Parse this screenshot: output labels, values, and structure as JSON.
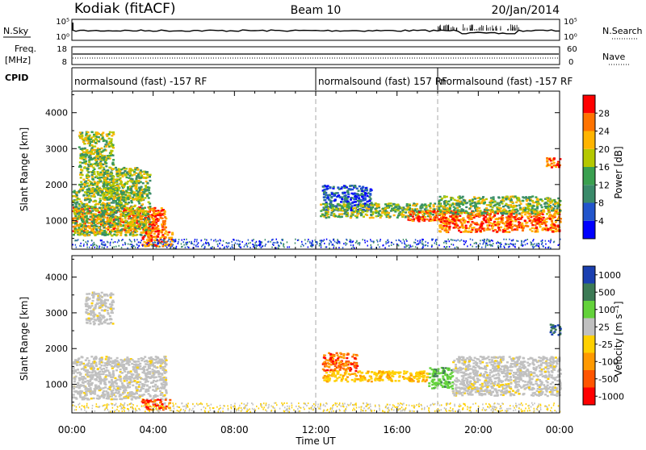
{
  "header": {
    "station": "Kodiak (fitACF)",
    "beam": "Beam 10",
    "date": "20/Jan/2014"
  },
  "noise_panel": {
    "left_label": "N.Sky",
    "right_label": "N.Search",
    "left_ticks": [
      "10^5",
      "10^0"
    ],
    "right_ticks": [
      "10^5",
      "10^0"
    ]
  },
  "freq_panel": {
    "left_label_1": "Freq.",
    "left_label_2": "[MHz]",
    "right_label": "Nave",
    "left_ticks": [
      "18",
      "8"
    ],
    "right_ticks": [
      "60",
      "0"
    ]
  },
  "cpid": {
    "label": "CPID",
    "segments": [
      {
        "start": 0.0,
        "end": 12.0,
        "text": "normalsound (fast) -157 RF"
      },
      {
        "start": 12.0,
        "end": 18.0,
        "text": "normalsound (fast) 157 RF"
      },
      {
        "start": 18.0,
        "end": 24.0,
        "text": "normalsound (fast) -157 RF"
      }
    ]
  },
  "axes": {
    "ylabel": "Slant Range [km]",
    "xlabel": "Time UT",
    "xticks": [
      "00:00",
      "04:00",
      "08:00",
      "12:00",
      "16:00",
      "20:00",
      "00:00"
    ],
    "yticks": [
      "1000",
      "2000",
      "3000",
      "4000"
    ]
  },
  "power_colorbar": {
    "label": "Power [dB]",
    "ticks": [
      "4",
      "8",
      "12",
      "16",
      "20",
      "24",
      "28"
    ],
    "colors": [
      "#0000ff",
      "#2255cc",
      "#3a8a6a",
      "#3aa050",
      "#b5c800",
      "#ffb400",
      "#ff7300",
      "#ff0000"
    ]
  },
  "velocity_colorbar": {
    "label": "Velocity [m s^-1]",
    "ticks": [
      "1000",
      "500",
      "100",
      "25",
      "-25",
      "-100",
      "-500",
      "-1000"
    ],
    "colors": [
      "#1a3fb0",
      "#3c7a55",
      "#63d23a",
      "#c0c0c0",
      "#ffd000",
      "#ff9900",
      "#ff5500",
      "#ff0000"
    ]
  },
  "chart_data": {
    "type": "heatmap",
    "title": "Kodiak (fitACF)",
    "xlabel": "Time UT",
    "ylabel": "Slant Range [km]",
    "xlim": [
      0,
      24
    ],
    "ylim": [
      200,
      4600
    ],
    "dashed_lines_hours": [
      12,
      18
    ],
    "power_regions": [
      {
        "x0": 0.0,
        "x1": 4.6,
        "y0": 700,
        "y1": 1400,
        "level": "high"
      },
      {
        "x0": 0.0,
        "x1": 3.8,
        "y0": 600,
        "y1": 1900,
        "level": "medium"
      },
      {
        "x0": 0.3,
        "x1": 2.0,
        "y0": 1800,
        "y1": 3500,
        "level": "medium"
      },
      {
        "x0": 1.5,
        "x1": 3.8,
        "y0": 1600,
        "y1": 2500,
        "level": "medium"
      },
      {
        "x0": 3.4,
        "x1": 4.9,
        "y0": 300,
        "y1": 700,
        "level": "high"
      },
      {
        "x0": 12.3,
        "x1": 14.7,
        "y0": 1300,
        "y1": 2000,
        "level": "low"
      },
      {
        "x0": 12.2,
        "x1": 18.0,
        "y0": 1100,
        "y1": 1500,
        "level": "medium"
      },
      {
        "x0": 16.5,
        "x1": 19.0,
        "y0": 1000,
        "y1": 1300,
        "level": "high"
      },
      {
        "x0": 18.0,
        "x1": 24.0,
        "y0": 700,
        "y1": 1300,
        "level": "high"
      },
      {
        "x0": 18.0,
        "x1": 24.0,
        "y0": 1200,
        "y1": 1700,
        "level": "medium"
      },
      {
        "x0": 23.3,
        "x1": 24.0,
        "y0": 2500,
        "y1": 2800,
        "level": "high"
      }
    ],
    "velocity_regions": [
      {
        "x0": 0.0,
        "x1": 4.6,
        "y0": 600,
        "y1": 1800,
        "level": "ground"
      },
      {
        "x0": 3.4,
        "x1": 4.8,
        "y0": 300,
        "y1": 600,
        "level": "receding"
      },
      {
        "x0": 12.3,
        "x1": 14.0,
        "y0": 1400,
        "y1": 1900,
        "level": "receding"
      },
      {
        "x0": 12.3,
        "x1": 17.5,
        "y0": 1100,
        "y1": 1400,
        "level": "receding-slow"
      },
      {
        "x0": 17.5,
        "x1": 18.7,
        "y0": 900,
        "y1": 1500,
        "level": "approaching"
      },
      {
        "x0": 18.7,
        "x1": 24.0,
        "y0": 700,
        "y1": 1800,
        "level": "ground"
      },
      {
        "x0": 0.6,
        "x1": 2.0,
        "y0": 2700,
        "y1": 3600,
        "level": "ground"
      },
      {
        "x0": 23.5,
        "x1": 24.0,
        "y0": 2400,
        "y1": 2700,
        "level": "approaching-fast"
      }
    ]
  }
}
